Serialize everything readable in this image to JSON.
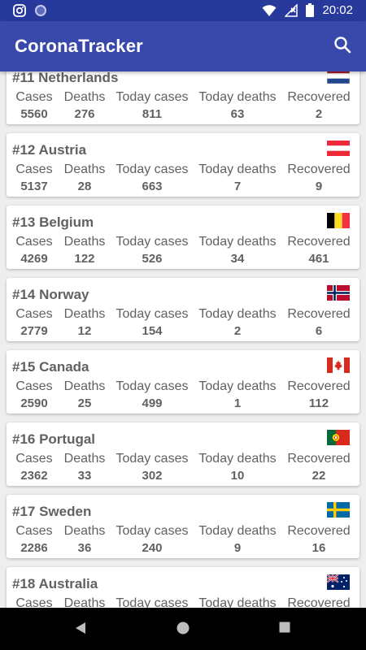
{
  "status_bar": {
    "time": "20:02",
    "icons": [
      "instagram-icon",
      "circle-app-icon",
      "wifi-icon",
      "no-signal-icon",
      "battery-icon"
    ]
  },
  "app_bar": {
    "title": "CoronaTracker",
    "search_icon": "search-icon"
  },
  "colors": {
    "status_bar": "#27399b",
    "app_bar": "#3949ab",
    "background": "#eeeeee",
    "text": "#616161"
  },
  "labels": {
    "cases": "Cases",
    "deaths": "Deaths",
    "today_cases": "Today cases",
    "today_deaths": "Today deaths",
    "recovered": "Recovered"
  },
  "countries": [
    {
      "name": "#11 Netherlands",
      "flag": "netherlands-flag-icon",
      "cases": "5560",
      "deaths": "276",
      "today_cases": "811",
      "today_deaths": "63",
      "recovered": "2"
    },
    {
      "name": "#12 Austria",
      "flag": "austria-flag-icon",
      "cases": "5137",
      "deaths": "28",
      "today_cases": "663",
      "today_deaths": "7",
      "recovered": "9"
    },
    {
      "name": "#13 Belgium",
      "flag": "belgium-flag-icon",
      "cases": "4269",
      "deaths": "122",
      "today_cases": "526",
      "today_deaths": "34",
      "recovered": "461"
    },
    {
      "name": "#14 Norway",
      "flag": "norway-flag-icon",
      "cases": "2779",
      "deaths": "12",
      "today_cases": "154",
      "today_deaths": "2",
      "recovered": "6"
    },
    {
      "name": "#15 Canada",
      "flag": "canada-flag-icon",
      "cases": "2590",
      "deaths": "25",
      "today_cases": "499",
      "today_deaths": "1",
      "recovered": "112"
    },
    {
      "name": "#16 Portugal",
      "flag": "portugal-flag-icon",
      "cases": "2362",
      "deaths": "33",
      "today_cases": "302",
      "today_deaths": "10",
      "recovered": "22"
    },
    {
      "name": "#17 Sweden",
      "flag": "sweden-flag-icon",
      "cases": "2286",
      "deaths": "36",
      "today_cases": "240",
      "today_deaths": "9",
      "recovered": "16"
    },
    {
      "name": "#18 Australia",
      "flag": "australia-flag-icon",
      "cases": "",
      "deaths": "",
      "today_cases": "",
      "today_deaths": "",
      "recovered": ""
    }
  ],
  "nav_bar": {
    "icons": [
      "back-icon",
      "home-icon",
      "recents-icon"
    ]
  }
}
